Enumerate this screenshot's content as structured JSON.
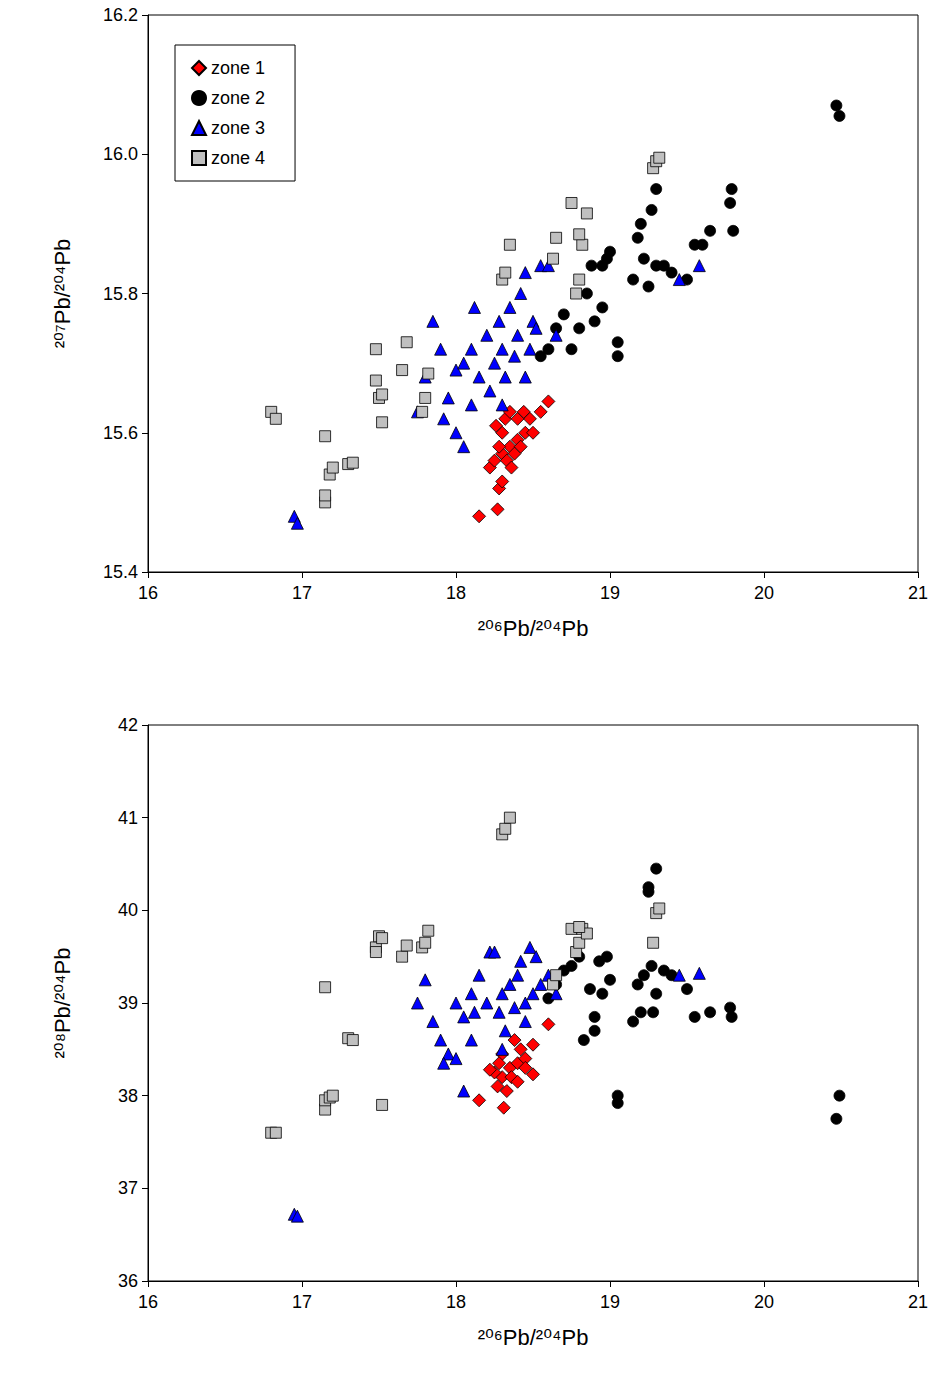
{
  "chart_data": [
    {
      "type": "scatter",
      "x_label": "²⁰⁶Pb/²⁰⁴Pb",
      "y_label": "²⁰⁷Pb/²⁰⁴Pb",
      "xlim": [
        16,
        21
      ],
      "xticks": [
        16,
        17,
        18,
        19,
        20,
        21
      ],
      "ylim": [
        15.4,
        16.2
      ],
      "yticks": [
        15.4,
        15.6,
        15.8,
        {
          "value": 16,
          "label": "16.0"
        },
        16.2
      ],
      "grid": false,
      "legend": "upper left",
      "series": [
        {
          "name": "zone 1",
          "color": "#ff0000",
          "marker": "diamond",
          "x": [
            18.15,
            18.27,
            18.28,
            18.3,
            18.22,
            18.25,
            18.3,
            18.33,
            18.35,
            18.38,
            18.4,
            18.45,
            18.5,
            18.48,
            18.55,
            18.6,
            18.3,
            18.32,
            18.35,
            18.4,
            18.28,
            18.26,
            18.42,
            18.36,
            18.44
          ],
          "values": [
            15.48,
            15.49,
            15.52,
            15.53,
            15.55,
            15.56,
            15.57,
            15.56,
            15.58,
            15.57,
            15.59,
            15.6,
            15.6,
            15.62,
            15.63,
            15.645,
            15.6,
            15.62,
            15.63,
            15.62,
            15.58,
            15.61,
            15.58,
            15.55,
            15.63
          ]
        },
        {
          "name": "zone 2",
          "color": "#000000",
          "marker": "circle",
          "x": [
            18.6,
            18.65,
            18.7,
            18.75,
            18.8,
            18.85,
            18.88,
            18.9,
            18.95,
            18.98,
            19.0,
            19.05,
            19.05,
            18.95,
            19.15,
            19.18,
            19.2,
            19.25,
            19.27,
            19.3,
            19.3,
            19.35,
            19.4,
            19.5,
            19.55,
            19.6,
            19.65,
            19.78,
            19.79,
            19.8,
            20.47,
            20.49,
            19.22,
            18.55
          ],
          "values": [
            15.72,
            15.75,
            15.77,
            15.72,
            15.75,
            15.8,
            15.84,
            15.76,
            15.78,
            15.85,
            15.86,
            15.73,
            15.71,
            15.84,
            15.82,
            15.88,
            15.9,
            15.81,
            15.92,
            15.95,
            15.84,
            15.84,
            15.83,
            15.82,
            15.87,
            15.87,
            15.89,
            15.93,
            15.95,
            15.89,
            16.07,
            16.055,
            15.85,
            15.71
          ]
        },
        {
          "name": "zone 3",
          "color": "#0000ff",
          "marker": "triangle",
          "x": [
            16.95,
            16.97,
            17.75,
            17.8,
            17.85,
            17.9,
            17.95,
            18.0,
            18.05,
            18.0,
            18.05,
            18.1,
            18.1,
            18.15,
            18.2,
            18.22,
            18.25,
            18.28,
            18.3,
            18.32,
            18.35,
            18.38,
            18.4,
            18.42,
            18.45,
            18.48,
            18.5,
            18.52,
            18.55,
            18.6,
            18.3,
            18.45,
            18.12,
            19.45,
            19.58,
            18.65,
            17.92
          ],
          "values": [
            15.48,
            15.47,
            15.63,
            15.68,
            15.76,
            15.72,
            15.65,
            15.6,
            15.58,
            15.69,
            15.7,
            15.64,
            15.72,
            15.68,
            15.74,
            15.66,
            15.7,
            15.76,
            15.72,
            15.68,
            15.78,
            15.71,
            15.74,
            15.8,
            15.68,
            15.72,
            15.76,
            15.75,
            15.84,
            15.84,
            15.64,
            15.83,
            15.78,
            15.82,
            15.84,
            15.74,
            15.62
          ]
        },
        {
          "name": "zone 4",
          "color": "#c0c0c0",
          "marker": "square",
          "x": [
            16.8,
            16.83,
            17.15,
            17.15,
            17.15,
            17.18,
            17.2,
            17.3,
            17.33,
            17.48,
            17.48,
            17.5,
            17.52,
            17.52,
            17.65,
            17.68,
            17.78,
            17.8,
            17.82,
            18.3,
            18.32,
            18.35,
            18.63,
            18.65,
            18.75,
            18.78,
            18.8,
            18.82,
            18.85,
            19.28,
            19.3,
            19.32,
            18.8
          ],
          "values": [
            15.63,
            15.62,
            15.595,
            15.5,
            15.51,
            15.54,
            15.55,
            15.555,
            15.557,
            15.72,
            15.675,
            15.65,
            15.655,
            15.615,
            15.69,
            15.73,
            15.63,
            15.65,
            15.685,
            15.82,
            15.83,
            15.87,
            15.85,
            15.88,
            15.93,
            15.8,
            15.82,
            15.87,
            15.915,
            15.98,
            15.99,
            15.995,
            15.885
          ]
        }
      ]
    },
    {
      "type": "scatter",
      "x_label": "²⁰⁶Pb/²⁰⁴Pb",
      "y_label": "²⁰⁸Pb/²⁰⁴Pb",
      "xlim": [
        16,
        21
      ],
      "xticks": [
        16,
        17,
        18,
        19,
        20,
        21
      ],
      "ylim": [
        36,
        42
      ],
      "yticks": [
        36,
        37,
        38,
        39,
        40,
        41,
        42
      ],
      "grid": false,
      "series": [
        {
          "name": "zone 1",
          "color": "#ff0000",
          "marker": "diamond",
          "x": [
            18.15,
            18.31,
            18.27,
            18.3,
            18.25,
            18.35,
            18.4,
            18.45,
            18.5,
            18.5,
            18.6,
            18.38,
            18.42,
            18.3,
            18.33,
            18.36,
            18.28,
            18.4,
            18.45,
            18.22
          ],
          "values": [
            37.95,
            37.87,
            38.1,
            38.2,
            38.25,
            38.3,
            38.35,
            38.4,
            38.55,
            38.23,
            38.77,
            38.6,
            38.5,
            38.45,
            38.05,
            38.2,
            38.35,
            38.15,
            38.3,
            38.28
          ]
        },
        {
          "name": "zone 2",
          "color": "#000000",
          "marker": "circle",
          "x": [
            18.6,
            18.65,
            18.7,
            18.75,
            18.8,
            18.83,
            18.87,
            18.9,
            18.9,
            18.95,
            18.98,
            19.0,
            19.05,
            19.05,
            19.15,
            19.18,
            19.2,
            19.25,
            19.25,
            19.3,
            19.27,
            19.3,
            19.35,
            19.4,
            19.5,
            19.55,
            19.65,
            19.78,
            19.79,
            20.47,
            20.49,
            19.22,
            19.28,
            18.93
          ],
          "values": [
            39.05,
            39.2,
            39.35,
            39.4,
            39.5,
            38.6,
            39.15,
            38.85,
            38.7,
            39.1,
            39.5,
            39.25,
            38.0,
            37.92,
            38.8,
            39.2,
            38.9,
            40.25,
            40.2,
            40.45,
            39.4,
            39.1,
            39.35,
            39.3,
            39.15,
            38.85,
            38.9,
            38.95,
            38.85,
            37.75,
            38.0,
            39.3,
            38.9,
            39.45
          ]
        },
        {
          "name": "zone 3",
          "color": "#0000ff",
          "marker": "triangle",
          "x": [
            16.95,
            16.97,
            17.75,
            17.8,
            17.85,
            17.9,
            17.95,
            18.0,
            18.05,
            18.0,
            18.05,
            18.1,
            18.1,
            18.15,
            18.2,
            18.22,
            18.25,
            18.28,
            18.3,
            18.32,
            18.35,
            18.38,
            18.4,
            18.42,
            18.45,
            18.48,
            18.5,
            18.52,
            18.55,
            18.6,
            18.3,
            18.45,
            18.12,
            19.45,
            19.58,
            18.65,
            17.92
          ],
          "values": [
            36.72,
            36.7,
            39.0,
            39.25,
            38.8,
            38.6,
            38.45,
            38.4,
            38.05,
            39.0,
            38.85,
            39.1,
            38.6,
            39.3,
            39.0,
            39.55,
            39.55,
            38.9,
            39.1,
            38.7,
            39.2,
            38.95,
            39.3,
            39.45,
            38.8,
            39.6,
            39.1,
            39.5,
            39.2,
            39.3,
            38.5,
            39.0,
            38.9,
            39.3,
            39.32,
            39.1,
            38.35
          ]
        },
        {
          "name": "zone 4",
          "color": "#c0c0c0",
          "marker": "square",
          "x": [
            16.8,
            16.83,
            17.15,
            17.15,
            17.15,
            17.18,
            17.2,
            17.3,
            17.33,
            17.48,
            17.48,
            17.5,
            17.52,
            17.52,
            17.65,
            17.68,
            17.78,
            17.8,
            17.82,
            18.3,
            18.32,
            18.35,
            18.63,
            18.65,
            18.75,
            18.78,
            18.8,
            18.82,
            18.85,
            19.28,
            19.3,
            19.32,
            18.8
          ],
          "values": [
            37.6,
            37.6,
            39.17,
            37.85,
            37.95,
            37.98,
            38.0,
            38.62,
            38.6,
            39.6,
            39.55,
            39.72,
            39.7,
            37.9,
            39.5,
            39.62,
            39.6,
            39.65,
            39.78,
            40.82,
            40.88,
            41.0,
            39.2,
            39.3,
            39.8,
            39.55,
            39.65,
            39.8,
            39.75,
            39.65,
            39.97,
            40.02,
            39.82
          ]
        }
      ]
    }
  ]
}
